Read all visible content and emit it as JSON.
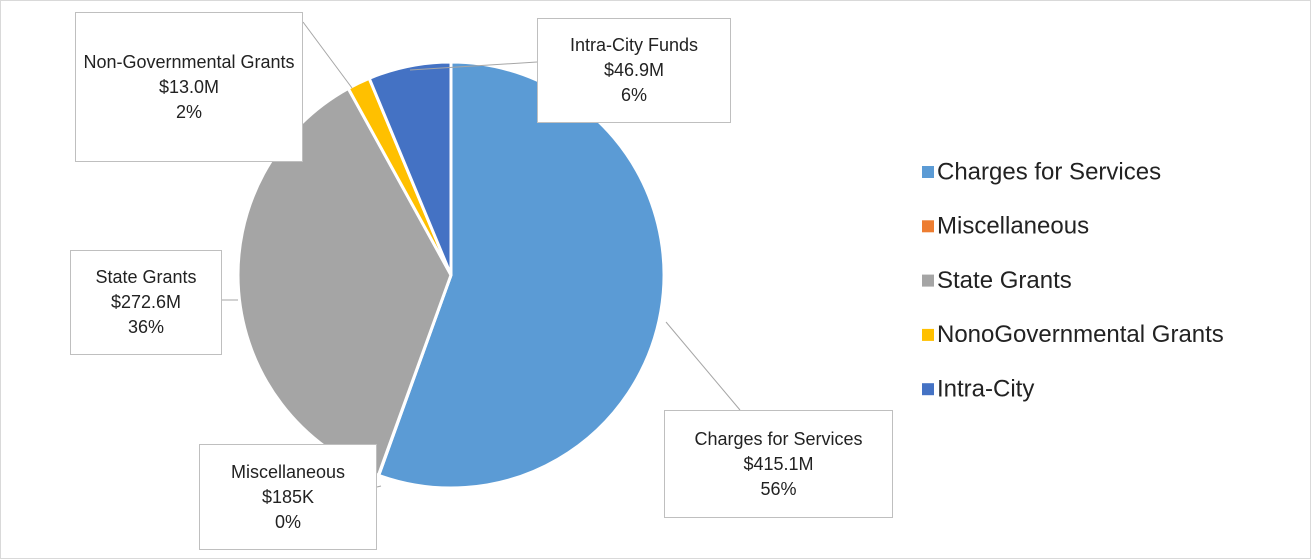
{
  "chart_data": {
    "type": "pie",
    "categories": [
      "Charges for Services",
      "Miscellaneous",
      "State Grants",
      "NonoGovernmental Grants",
      "Intra-City"
    ],
    "label_names": [
      "Charges for Services",
      "Miscellaneous",
      "State Grants",
      "Non-Governmental Grants",
      "Intra-City Funds"
    ],
    "values": [
      415100000,
      185000,
      272600000,
      13000000,
      46900000
    ],
    "value_labels": [
      "$415.1M",
      "$185K",
      "$272.6M",
      "$13.0M",
      "$46.9M"
    ],
    "percent_labels": [
      "56%",
      "0%",
      "36%",
      "2%",
      "6%"
    ],
    "colors": [
      "#5b9bd5",
      "#ed7d31",
      "#a5a5a5",
      "#ffc000",
      "#4472c4"
    ],
    "legend": "right"
  }
}
